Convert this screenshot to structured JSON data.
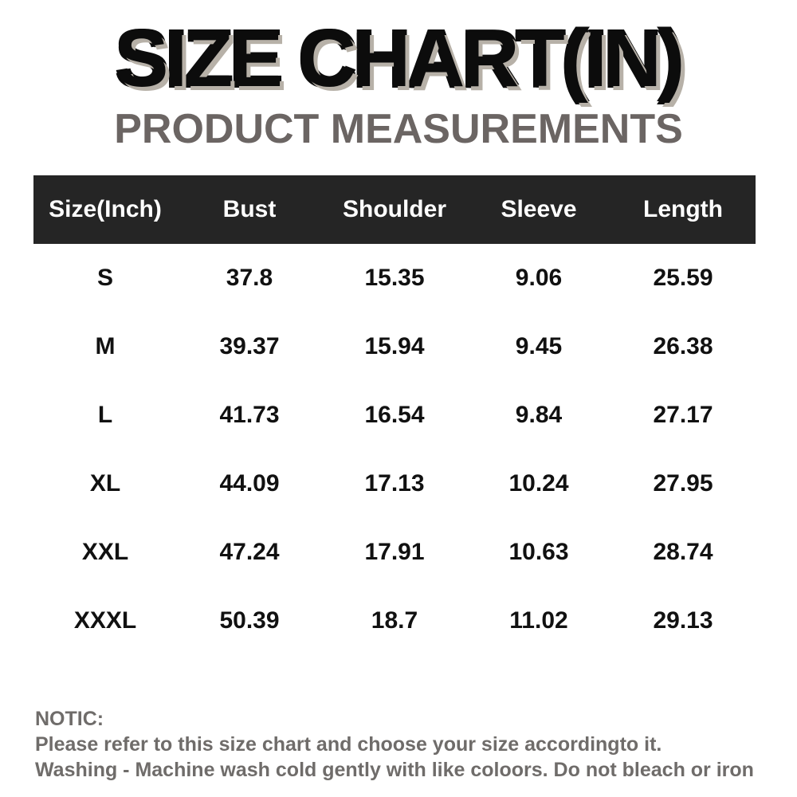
{
  "header": {
    "title": "SIZE CHART(IN)",
    "subtitle": "PRODUCT MEASUREMENTS"
  },
  "table": {
    "columns": [
      "Size(Inch)",
      "Bust",
      "Shoulder",
      "Sleeve",
      "Length"
    ],
    "rows": [
      [
        "S",
        "37.8",
        "15.35",
        "9.06",
        "25.59"
      ],
      [
        "M",
        "39.37",
        "15.94",
        "9.45",
        "26.38"
      ],
      [
        "L",
        "41.73",
        "16.54",
        "9.84",
        "27.17"
      ],
      [
        "XL",
        "44.09",
        "17.13",
        "10.24",
        "27.95"
      ],
      [
        "XXL",
        "47.24",
        "17.91",
        "10.63",
        "28.74"
      ],
      [
        "XXXL",
        "50.39",
        "18.7",
        "11.02",
        "29.13"
      ]
    ]
  },
  "notes": {
    "heading": "NOTIC:",
    "line1": "Please refer to this size chart and choose your size accordingto it.",
    "line2": "Washing - Machine wash cold gently with like coloors. Do not bleach or iron"
  },
  "colors": {
    "header_bg": "#252525",
    "subtitle": "#6b6563",
    "notes_text": "#6f6c6a"
  }
}
